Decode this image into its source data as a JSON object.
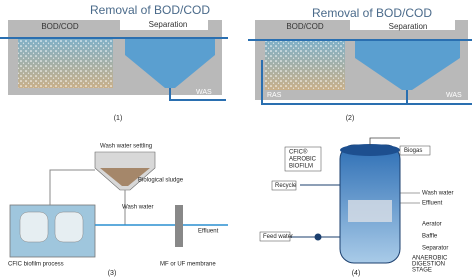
{
  "panels": [
    {
      "title": "Removal of BOD/COD",
      "zone_left": "BOD/COD",
      "zone_right": "Separation",
      "outlet": "WAS",
      "caption": "(1)"
    },
    {
      "title": "Removal of BOD/COD",
      "zone_left": "BOD/COD",
      "zone_right": "Separation",
      "return": "RAS",
      "outlet": "WAS",
      "caption": "(2)"
    },
    {
      "settling": "Wash water settling",
      "sludge": "Biological sludge",
      "wash": "Wash water",
      "effluent": "Effluent",
      "process": "CFIC biofilm process",
      "membrane": "MF or UF membrane",
      "caption": "(3)"
    },
    {
      "biogas": "Biogas",
      "aerobic": [
        "CFIC®",
        "AEROBIC",
        "BIOFILM"
      ],
      "recycle": "Recycle",
      "wash": "Wash water",
      "effluent": "Effluent",
      "aerator": "Aerator",
      "baffle": "Baffle",
      "separator": "Separator",
      "anaerobic": [
        "ANAEROBIC",
        "DIGESTION",
        "STAGE"
      ],
      "feed": "Feed water",
      "caption": "(4)"
    }
  ]
}
